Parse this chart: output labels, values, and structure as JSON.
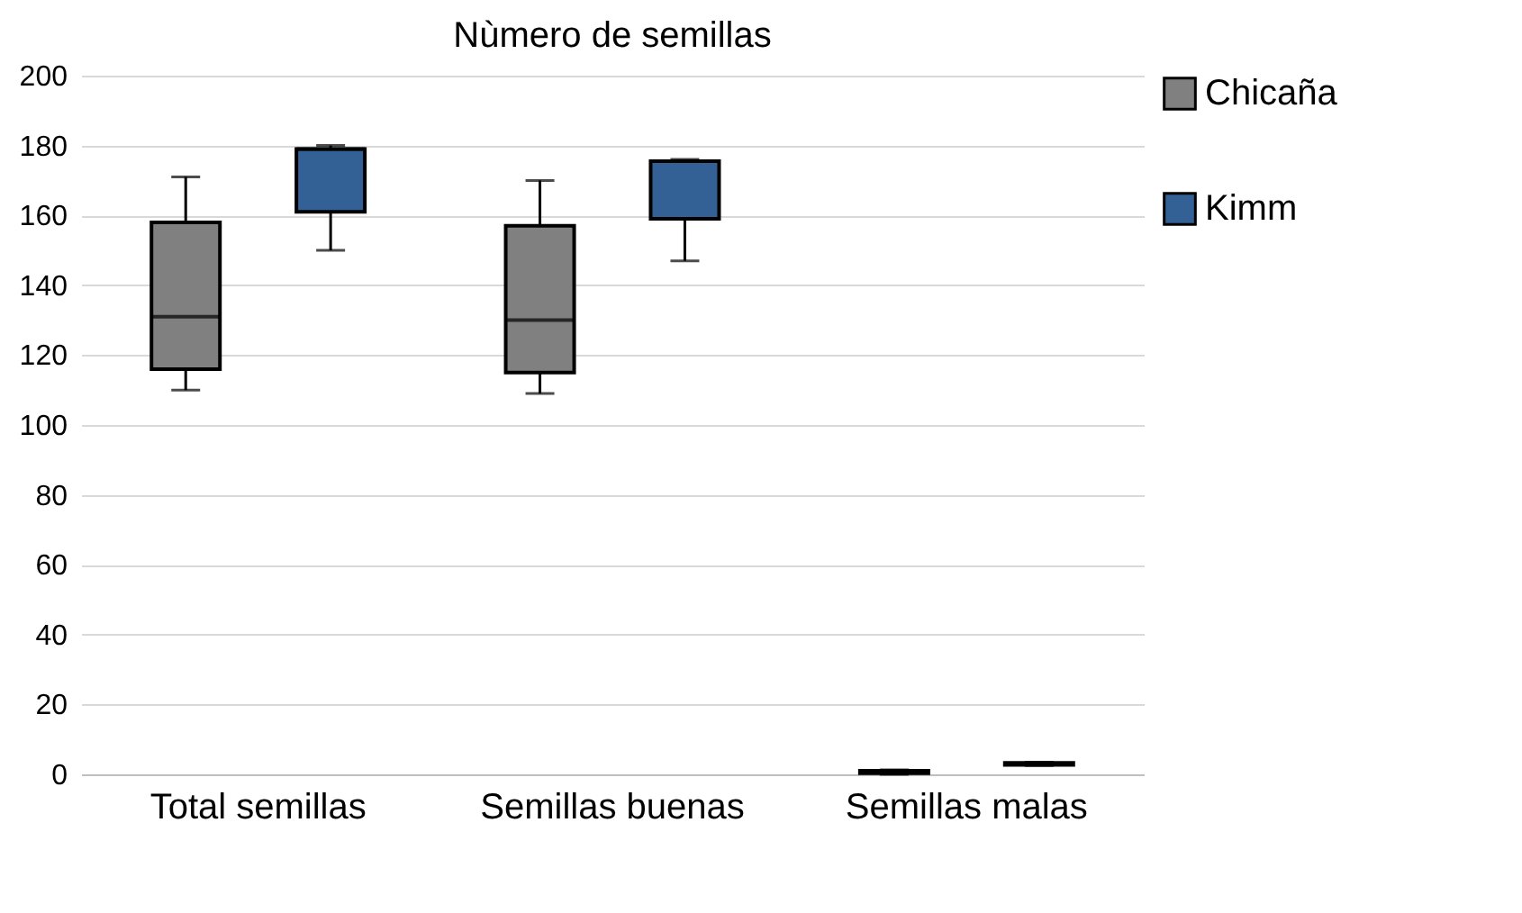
{
  "chart_data": {
    "type": "box",
    "title": "Nùmero de semillas",
    "categories": [
      "Total semillas",
      "Semillas buenas",
      "Semillas malas"
    ],
    "ylim": [
      0,
      200
    ],
    "yticks": [
      0,
      20,
      40,
      60,
      80,
      100,
      120,
      140,
      160,
      180,
      200
    ],
    "grid": "y",
    "legend": "right",
    "series": [
      {
        "name": "Chicaña",
        "color": "#808080",
        "boxes": [
          {
            "low": 110,
            "q1": 116,
            "median": 131,
            "q3": 158,
            "high": 171
          },
          {
            "low": 109,
            "q1": 115,
            "median": 130,
            "q3": 157,
            "high": 170
          },
          {
            "low": 0,
            "q1": 0.3,
            "median": 0.7,
            "q3": 1,
            "high": 1.3
          }
        ]
      },
      {
        "name": "Kimm",
        "color": "#336095",
        "boxes": [
          {
            "low": 150,
            "q1": 161,
            "median": 179,
            "q3": 179,
            "high": 180
          },
          {
            "low": 147,
            "q1": 159,
            "median": 175.5,
            "q3": 175.5,
            "high": 176
          },
          {
            "low": 2.5,
            "q1": 2.7,
            "median": 3,
            "q3": 3.3,
            "high": 3.5
          }
        ]
      }
    ]
  }
}
